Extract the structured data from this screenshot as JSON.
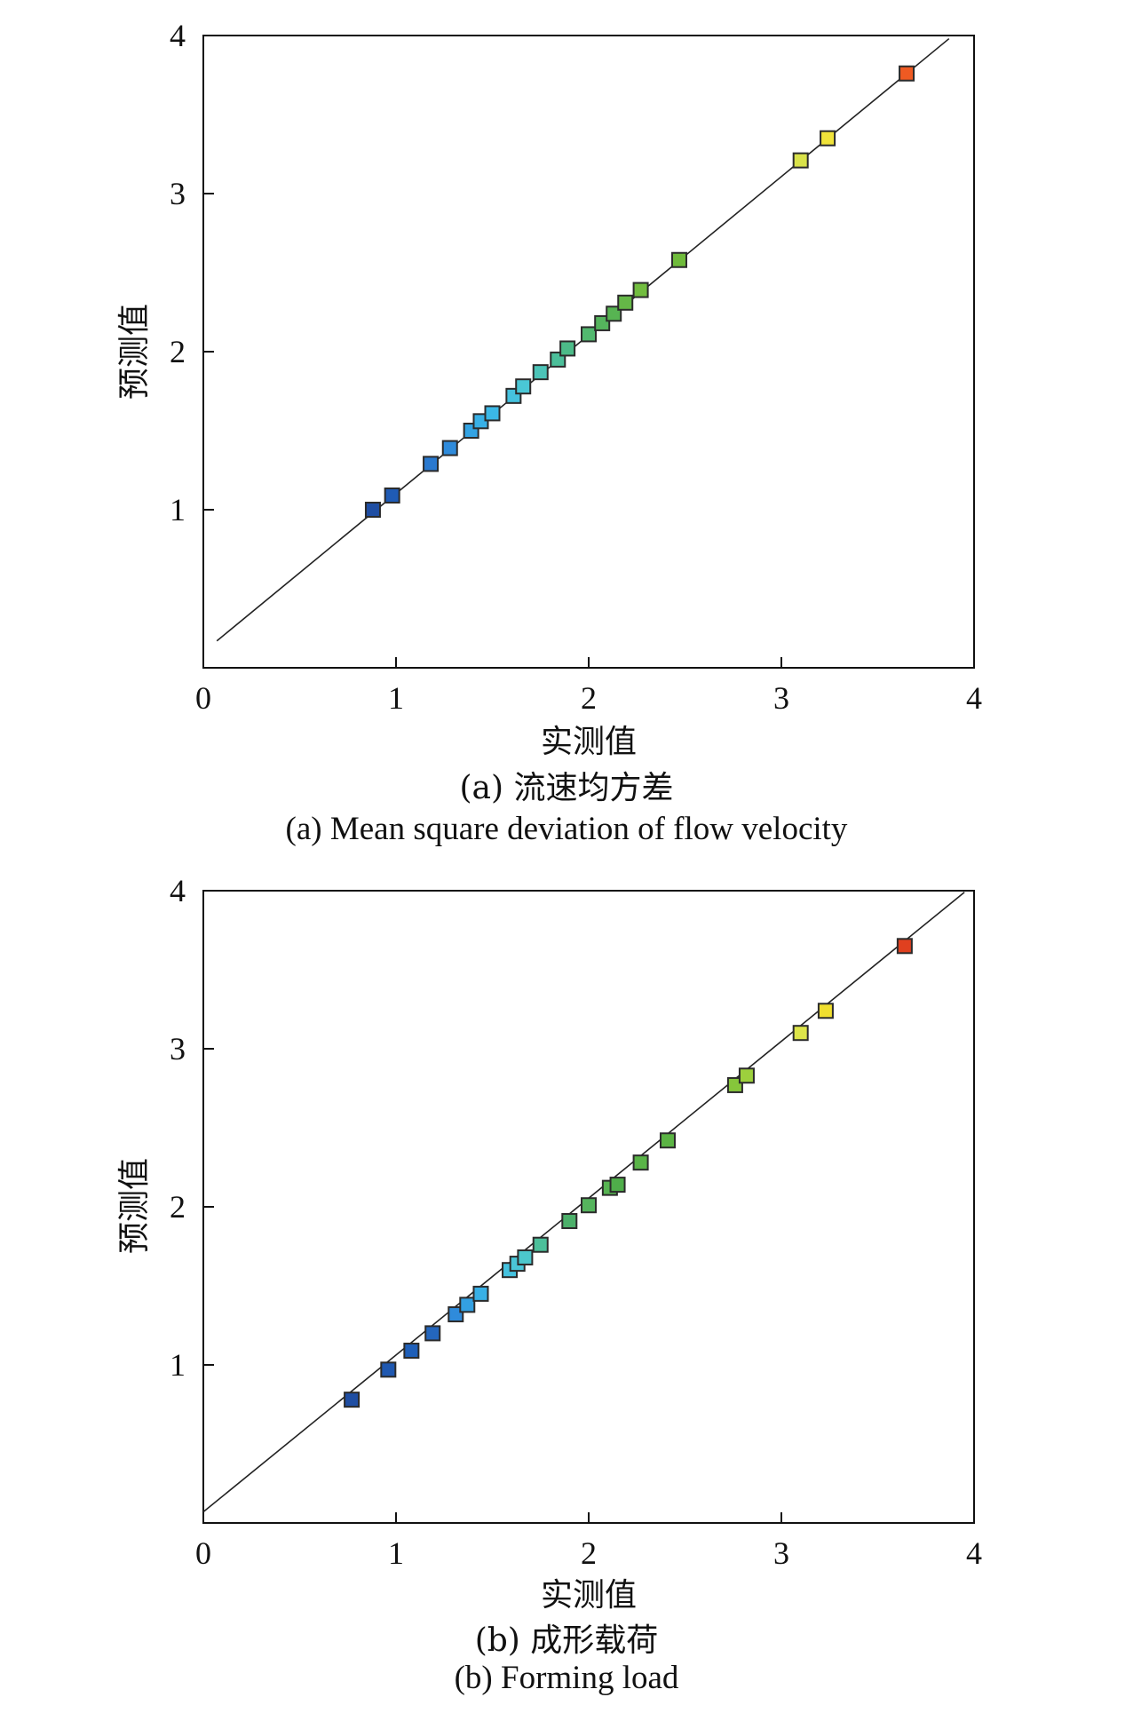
{
  "chart_data": [
    {
      "type": "scatter",
      "caption_cn": "(a) 流速均方差",
      "caption_en": "(a) Mean square deviation of flow velocity",
      "xlabel": "实测值",
      "ylabel": "预测值",
      "xlim": [
        0,
        4
      ],
      "ylim": [
        0,
        4
      ],
      "xticks": [
        "0",
        "1",
        "2",
        "3",
        "4"
      ],
      "yticks": [
        "1",
        "2",
        "3",
        "4"
      ],
      "reference_line": {
        "from": [
          0.07,
          0.17
        ],
        "to": [
          3.87,
          3.98
        ]
      },
      "points": [
        {
          "x": 0.88,
          "y": 1.0,
          "color": "#1f4ea3"
        },
        {
          "x": 0.98,
          "y": 1.09,
          "color": "#1f5bb5"
        },
        {
          "x": 1.18,
          "y": 1.29,
          "color": "#2a79cf"
        },
        {
          "x": 1.28,
          "y": 1.39,
          "color": "#2f8bdb"
        },
        {
          "x": 1.39,
          "y": 1.5,
          "color": "#33a3e3"
        },
        {
          "x": 1.44,
          "y": 1.56,
          "color": "#38b0e6"
        },
        {
          "x": 1.5,
          "y": 1.61,
          "color": "#3bb8e6"
        },
        {
          "x": 1.61,
          "y": 1.72,
          "color": "#45c2df"
        },
        {
          "x": 1.66,
          "y": 1.78,
          "color": "#4ac7d6"
        },
        {
          "x": 1.75,
          "y": 1.87,
          "color": "#4cc4b8"
        },
        {
          "x": 1.84,
          "y": 1.95,
          "color": "#4cbf9a"
        },
        {
          "x": 1.89,
          "y": 2.02,
          "color": "#4cbb88"
        },
        {
          "x": 2.0,
          "y": 2.11,
          "color": "#52b86f"
        },
        {
          "x": 2.07,
          "y": 2.18,
          "color": "#55b45d"
        },
        {
          "x": 2.13,
          "y": 2.24,
          "color": "#57b452"
        },
        {
          "x": 2.19,
          "y": 2.31,
          "color": "#65b847"
        },
        {
          "x": 2.27,
          "y": 2.39,
          "color": "#72bd3f"
        },
        {
          "x": 2.47,
          "y": 2.58,
          "color": "#6fbb3b"
        },
        {
          "x": 3.1,
          "y": 3.21,
          "color": "#d9e24a"
        },
        {
          "x": 3.24,
          "y": 3.35,
          "color": "#f0e33a"
        },
        {
          "x": 3.65,
          "y": 3.76,
          "color": "#ef5a22"
        }
      ]
    },
    {
      "type": "scatter",
      "caption_cn": "(b) 成形载荷",
      "caption_en": "(b) Forming load",
      "xlabel": "实测值",
      "ylabel": "预测值",
      "xlim": [
        0,
        4
      ],
      "ylim": [
        0,
        4
      ],
      "xticks": [
        "0",
        "1",
        "2",
        "3",
        "4"
      ],
      "yticks": [
        "1",
        "2",
        "3",
        "4"
      ],
      "reference_line": {
        "from": [
          0.0,
          0.07
        ],
        "to": [
          3.95,
          3.99
        ]
      },
      "points": [
        {
          "x": 0.77,
          "y": 0.78,
          "color": "#1f4ea3"
        },
        {
          "x": 0.96,
          "y": 0.97,
          "color": "#1f58b0"
        },
        {
          "x": 1.08,
          "y": 1.09,
          "color": "#1f5fb8"
        },
        {
          "x": 1.19,
          "y": 1.2,
          "color": "#2466bd"
        },
        {
          "x": 1.31,
          "y": 1.32,
          "color": "#2f8bdb"
        },
        {
          "x": 1.37,
          "y": 1.38,
          "color": "#33a0e2"
        },
        {
          "x": 1.44,
          "y": 1.45,
          "color": "#38b0e6"
        },
        {
          "x": 1.59,
          "y": 1.6,
          "color": "#45c2df"
        },
        {
          "x": 1.63,
          "y": 1.64,
          "color": "#4ac6d8"
        },
        {
          "x": 1.67,
          "y": 1.68,
          "color": "#4cc7cc"
        },
        {
          "x": 1.75,
          "y": 1.76,
          "color": "#4cbf9a"
        },
        {
          "x": 1.9,
          "y": 1.91,
          "color": "#4cb06a"
        },
        {
          "x": 2.0,
          "y": 2.01,
          "color": "#55b45d"
        },
        {
          "x": 2.11,
          "y": 2.12,
          "color": "#57b452"
        },
        {
          "x": 2.15,
          "y": 2.14,
          "color": "#4fae4a"
        },
        {
          "x": 2.27,
          "y": 2.28,
          "color": "#5ab448"
        },
        {
          "x": 2.41,
          "y": 2.42,
          "color": "#5bb444"
        },
        {
          "x": 2.76,
          "y": 2.77,
          "color": "#86c63b"
        },
        {
          "x": 2.82,
          "y": 2.83,
          "color": "#9dd03d"
        },
        {
          "x": 3.1,
          "y": 3.1,
          "color": "#dde54a"
        },
        {
          "x": 3.23,
          "y": 3.24,
          "color": "#f0df2f"
        },
        {
          "x": 3.64,
          "y": 3.65,
          "color": "#e0401f"
        }
      ]
    }
  ]
}
